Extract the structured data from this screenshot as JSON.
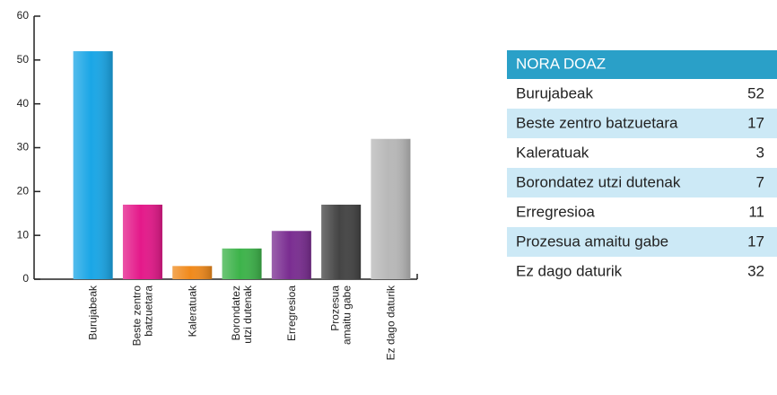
{
  "chart_data": {
    "type": "bar",
    "categories": [
      "Burujabeak",
      "Beste zentro batzuetara",
      "Kaleratuak",
      "Borondatez utzi dutenak",
      "Erregresioa",
      "Prozesua amaitu gabe",
      "Ez dago daturik"
    ],
    "values": [
      52,
      17,
      3,
      7,
      11,
      17,
      32
    ],
    "colors": [
      "#1aa6e6",
      "#e4198a",
      "#f08a1c",
      "#3db34a",
      "#7a2d91",
      "#444444",
      "#b8b8b8"
    ],
    "ylim": [
      0,
      60
    ],
    "yticks": [
      0,
      10,
      20,
      30,
      40,
      50,
      60
    ]
  },
  "table": {
    "title": "NORA DOAZ"
  }
}
